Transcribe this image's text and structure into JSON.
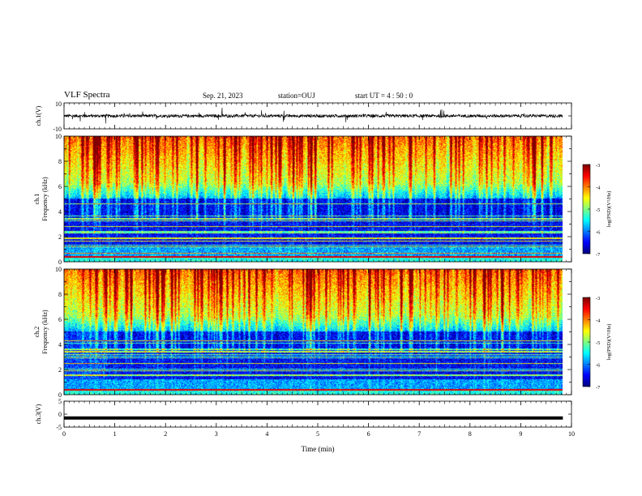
{
  "header": {
    "title": "VLF Spectra",
    "date": "Sep. 21, 2023",
    "station": "station=OUJ",
    "start_ut": "start  UT =   4 : 50 : 0"
  },
  "chart_data": [
    {
      "type": "line",
      "panel": "ch1-waveform",
      "ylabel": "ch.1(V)",
      "ylim": [
        -10,
        10
      ],
      "yticks": [
        "10",
        "-10"
      ],
      "baseline": 0,
      "noise_amplitude": 1.2,
      "line_color": "#000000"
    },
    {
      "type": "heatmap",
      "panel": "ch1-spectrogram",
      "ylabel": "ch.1\nFrequency  (kHz)",
      "ylim": [
        0,
        10
      ],
      "yticks": [
        "0",
        "2",
        "4",
        "6",
        "8",
        "10"
      ],
      "colorbar": {
        "label": "log(PSD)(V²/Hz)",
        "range": [
          -7,
          -3
        ],
        "ticks": [
          "-3",
          "-4",
          "-5",
          "-6",
          "-7"
        ]
      }
    },
    {
      "type": "heatmap",
      "panel": "ch2-spectrogram",
      "ylabel": "ch.2\nFrequency  (kHz)",
      "ylim": [
        0,
        10
      ],
      "yticks": [
        "0",
        "2",
        "4",
        "6",
        "8",
        "10"
      ],
      "colorbar": {
        "label": "log(PSD)(V²/Hz)",
        "range": [
          -7,
          -3
        ],
        "ticks": [
          "-3",
          "-4",
          "-5",
          "-6",
          "-7"
        ]
      }
    },
    {
      "type": "line",
      "panel": "ch3-waveform",
      "ylabel": "ch.3(V)",
      "ylim": [
        -5,
        5
      ],
      "yticks": [
        "5",
        "0",
        "-5"
      ],
      "baseline": -1.5,
      "line_color": "#000000"
    }
  ],
  "xaxis": {
    "xlabel": "Time  (min)",
    "xlim": [
      0,
      10
    ],
    "xticks": [
      "0",
      "1",
      "2",
      "3",
      "4",
      "5",
      "6",
      "7",
      "8",
      "9",
      "10"
    ],
    "data_end": 9.83
  }
}
